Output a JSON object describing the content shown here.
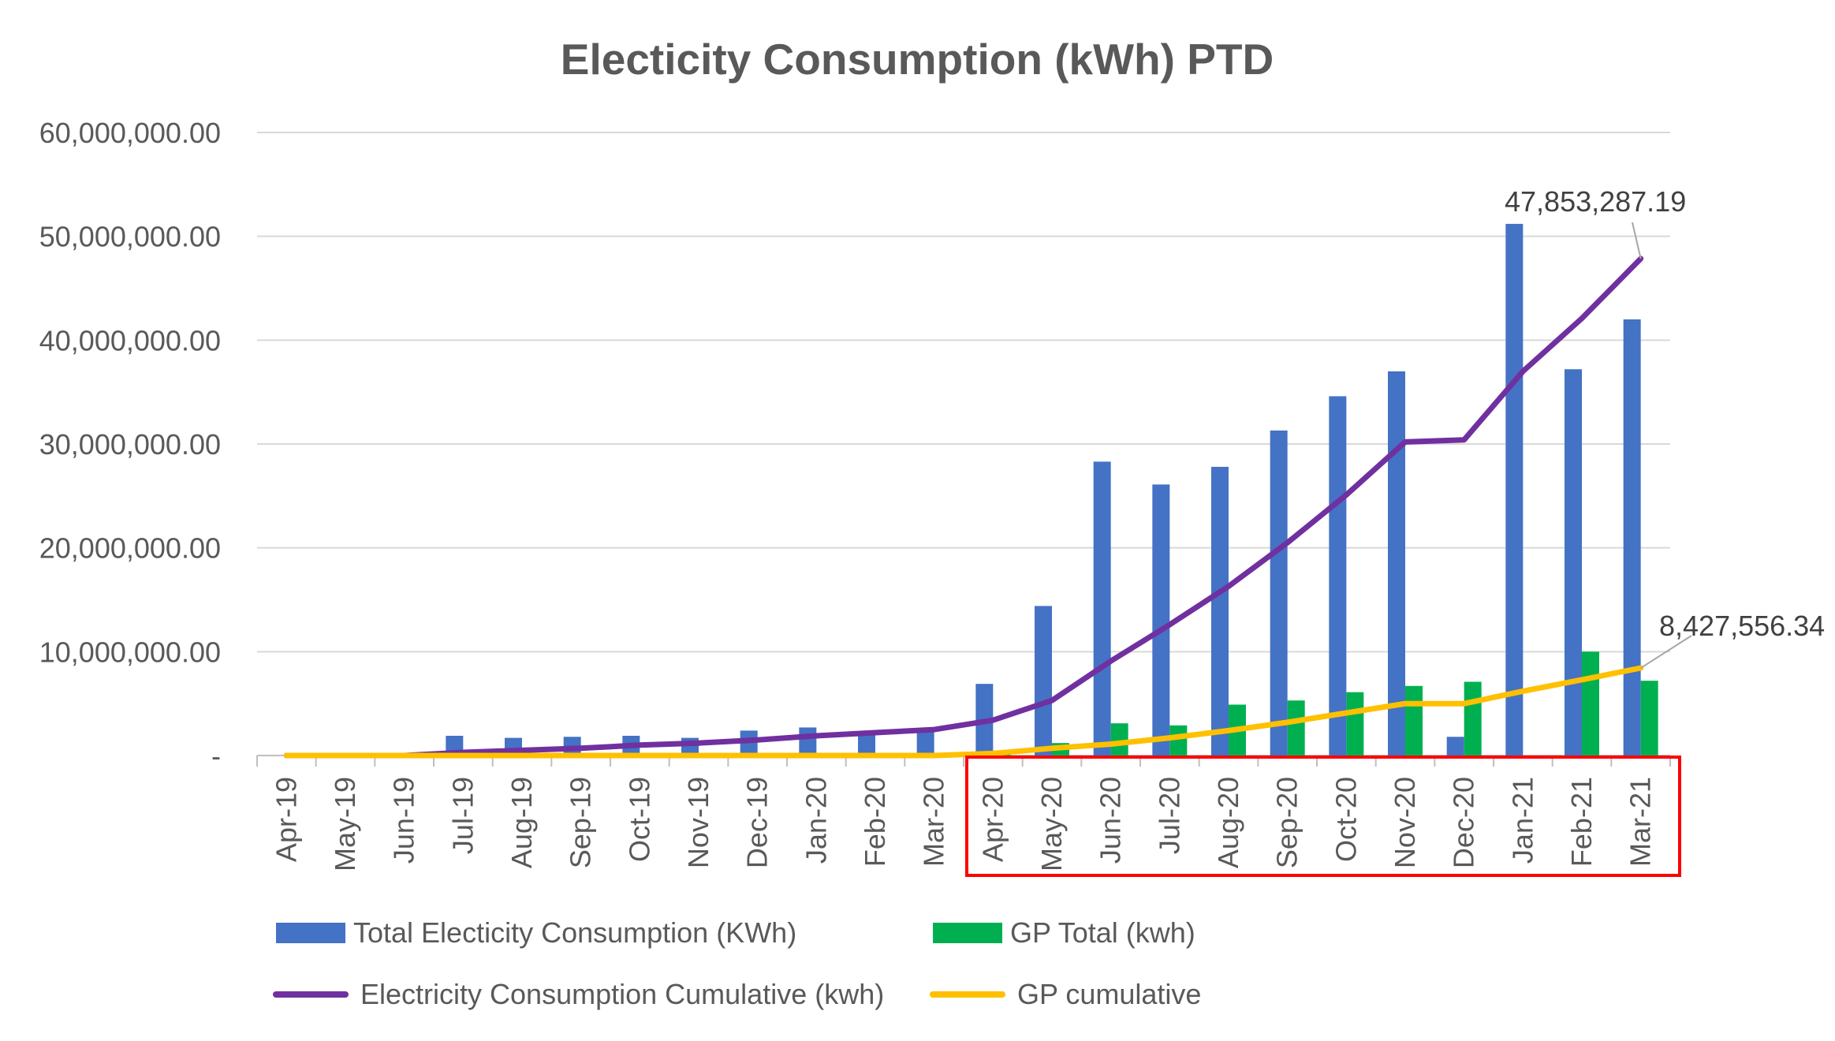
{
  "chart_data": {
    "type": "bar",
    "title": "Electicity Consumption (kWh) PTD",
    "categories": [
      "Apr-19",
      "May-19",
      "Jun-19",
      "Jul-19",
      "Aug-19",
      "Sep-19",
      "Oct-19",
      "Nov-19",
      "Dec-19",
      "Jan-20",
      "Feb-20",
      "Mar-20",
      "Apr-20",
      "May-20",
      "Jun-20",
      "Jul-20",
      "Aug-20",
      "Sep-20",
      "Oct-20",
      "Nov-20",
      "Dec-20",
      "Jan-21",
      "Feb-21",
      "Mar-21"
    ],
    "ylim": [
      0,
      60000000
    ],
    "y_ticks": [
      0,
      10000000,
      20000000,
      30000000,
      40000000,
      50000000,
      60000000
    ],
    "y_tick_labels": [
      "-",
      "10,000,000.00",
      "20,000,000.00",
      "30,000,000.00",
      "40,000,000.00",
      "50,000,000.00",
      "60,000,000.00"
    ],
    "grid": true,
    "legend_position": "bottom",
    "series": [
      {
        "name": "Total Electicity Consumption (KWh)",
        "kind": "bar",
        "color": "#4472C4",
        "values": [
          0,
          0,
          0,
          1900000,
          1700000,
          1800000,
          1900000,
          1700000,
          2400000,
          2700000,
          2300000,
          2500000,
          6900000,
          14400000,
          28300000,
          26100000,
          27800000,
          31300000,
          34600000,
          37000000,
          1800000,
          51200000,
          37200000,
          42000000
        ]
      },
      {
        "name": "GP Total (kwh)",
        "kind": "bar",
        "color": "#00B050",
        "values": [
          0,
          0,
          0,
          0,
          0,
          0,
          0,
          0,
          0,
          0,
          0,
          0,
          200000,
          1200000,
          3100000,
          2900000,
          4900000,
          5300000,
          6100000,
          6700000,
          7100000,
          0,
          10000000,
          7200000
        ]
      },
      {
        "name": "Electricity Consumption Cumulative (kwh)",
        "kind": "line",
        "color": "#7030A0",
        "values": [
          0,
          0,
          0,
          300000,
          500000,
          700000,
          1000000,
          1200000,
          1500000,
          1900000,
          2200000,
          2500000,
          3400000,
          5300000,
          9100000,
          12600000,
          16300000,
          20500000,
          25100000,
          30200000,
          30400000,
          37000000,
          42100000,
          47853287.19
        ]
      },
      {
        "name": "GP cumulative",
        "kind": "line",
        "color": "#FFC000",
        "values": [
          0,
          0,
          0,
          0,
          0,
          0,
          0,
          0,
          0,
          0,
          0,
          0,
          200000,
          700000,
          1100000,
          1700000,
          2400000,
          3200000,
          4100000,
          5000000,
          5000000,
          6200000,
          7300000,
          8427556.34
        ]
      }
    ],
    "annotations": [
      {
        "text": "47,853,287.19",
        "series": 2,
        "index": 23
      },
      {
        "text": "8,427,556.34",
        "series": 3,
        "index": 23
      }
    ],
    "highlight_box": {
      "from_index": 12,
      "to_index": 23,
      "color": "#FF0000"
    }
  }
}
